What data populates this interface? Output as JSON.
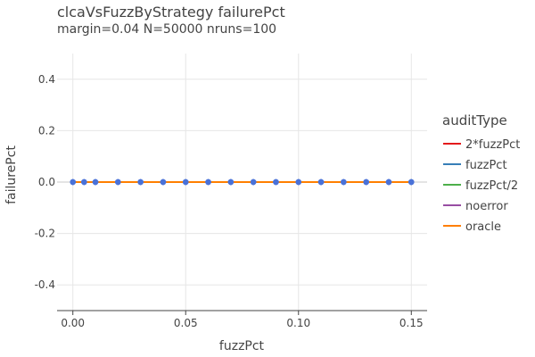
{
  "chart_data": {
    "type": "line",
    "title": "clcaVsFuzzByStrategy failurePct",
    "subtitle": "margin=0.04 N=50000 nruns=100",
    "xlabel": "fuzzPct",
    "ylabel": "failurePct",
    "xlim": [
      -0.007,
      0.157
    ],
    "ylim": [
      -0.5,
      0.5
    ],
    "xticks": [
      {
        "value": 0.0,
        "label": "0.00"
      },
      {
        "value": 0.05,
        "label": "0.05"
      },
      {
        "value": 0.1,
        "label": "0.10"
      },
      {
        "value": 0.15,
        "label": "0.15"
      }
    ],
    "yticks": [
      {
        "value": 0.4,
        "label": "0.4"
      },
      {
        "value": 0.2,
        "label": "0.2"
      },
      {
        "value": 0.0,
        "label": "0.0"
      },
      {
        "value": -0.2,
        "label": "-0.2"
      },
      {
        "value": -0.4,
        "label": "-0.4"
      }
    ],
    "grid": true,
    "legend_title": "auditType",
    "legend_position": "right",
    "x": [
      0.0,
      0.005,
      0.01,
      0.02,
      0.03,
      0.04,
      0.05,
      0.06,
      0.07,
      0.08,
      0.09,
      0.1,
      0.11,
      0.12,
      0.13,
      0.14,
      0.15
    ],
    "series": [
      {
        "name": "2*fuzzPct",
        "color": "#e41a1c",
        "values": [
          0,
          0,
          0,
          0,
          0,
          0,
          0,
          0,
          0,
          0,
          0,
          0,
          0,
          0,
          0,
          0,
          0
        ]
      },
      {
        "name": "fuzzPct",
        "color": "#377eb8",
        "values": [
          0,
          0,
          0,
          0,
          0,
          0,
          0,
          0,
          0,
          0,
          0,
          0,
          0,
          0,
          0,
          0,
          0
        ]
      },
      {
        "name": "fuzzPct/2",
        "color": "#4daf4a",
        "values": [
          0,
          0,
          0,
          0,
          0,
          0,
          0,
          0,
          0,
          0,
          0,
          0,
          0,
          0,
          0,
          0,
          0
        ]
      },
      {
        "name": "noerror",
        "color": "#984ea3",
        "values": [
          0,
          0,
          0,
          0,
          0,
          0,
          0,
          0,
          0,
          0,
          0,
          0,
          0,
          0,
          0,
          0,
          0
        ]
      },
      {
        "name": "oracle",
        "color": "#ff7f00",
        "values": [
          0,
          0,
          0,
          0,
          0,
          0,
          0,
          0,
          0,
          0,
          0,
          0,
          0,
          0,
          0,
          0,
          0
        ]
      }
    ],
    "marker_color": "#4a72d8"
  }
}
